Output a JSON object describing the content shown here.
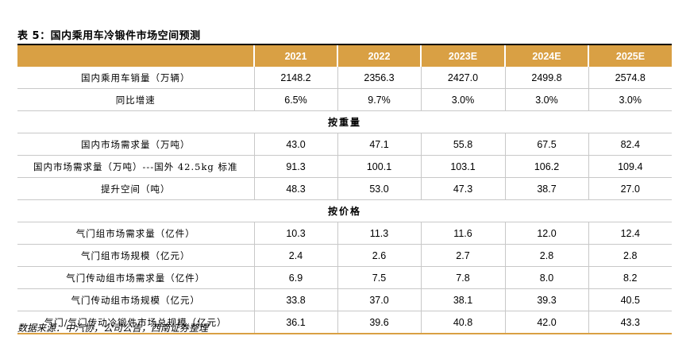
{
  "title": "表 5：国内乘用车冷锻件市场空间预测",
  "header": [
    "",
    "2021",
    "2022",
    "2023E",
    "2024E",
    "2025E"
  ],
  "rows": [
    {
      "type": "data",
      "label": "国内乘用车销量（万辆）",
      "values": [
        "2148.2",
        "2356.3",
        "2427.0",
        "2499.8",
        "2574.8"
      ]
    },
    {
      "type": "data",
      "label": "同比增速",
      "values": [
        "6.5%",
        "9.7%",
        "3.0%",
        "3.0%",
        "3.0%"
      ]
    },
    {
      "type": "section",
      "label": "按重量"
    },
    {
      "type": "data",
      "label": "国内市场需求量（万吨）",
      "values": [
        "43.0",
        "47.1",
        "55.8",
        "67.5",
        "82.4"
      ]
    },
    {
      "type": "data",
      "label": "国内市场需求量（万吨）---国外 42.5kg 标准",
      "values": [
        "91.3",
        "100.1",
        "103.1",
        "106.2",
        "109.4"
      ]
    },
    {
      "type": "data",
      "label": "提升空间（吨）",
      "values": [
        "48.3",
        "53.0",
        "47.3",
        "38.7",
        "27.0"
      ]
    },
    {
      "type": "section",
      "label": "按价格"
    },
    {
      "type": "data",
      "label": "气门组市场需求量（亿件）",
      "values": [
        "10.3",
        "11.3",
        "11.6",
        "12.0",
        "12.4"
      ]
    },
    {
      "type": "data",
      "label": "气门组市场规模（亿元）",
      "values": [
        "2.4",
        "2.6",
        "2.7",
        "2.8",
        "2.8"
      ]
    },
    {
      "type": "data",
      "label": "气门传动组市场需求量（亿件）",
      "values": [
        "6.9",
        "7.5",
        "7.8",
        "8.0",
        "8.2"
      ]
    },
    {
      "type": "data",
      "label": "气门传动组市场规模（亿元）",
      "values": [
        "33.8",
        "37.0",
        "38.1",
        "39.3",
        "40.5"
      ]
    },
    {
      "type": "data",
      "label": "气门/气门传动冷锻件市场总规模（亿元）",
      "values": [
        "36.1",
        "39.6",
        "40.8",
        "42.0",
        "43.3"
      ]
    }
  ],
  "source": "数据来源：中汽协，公司公告，西南证券整理",
  "colors": {
    "header_bg": "#d9a044",
    "header_text": "#ffffff"
  }
}
